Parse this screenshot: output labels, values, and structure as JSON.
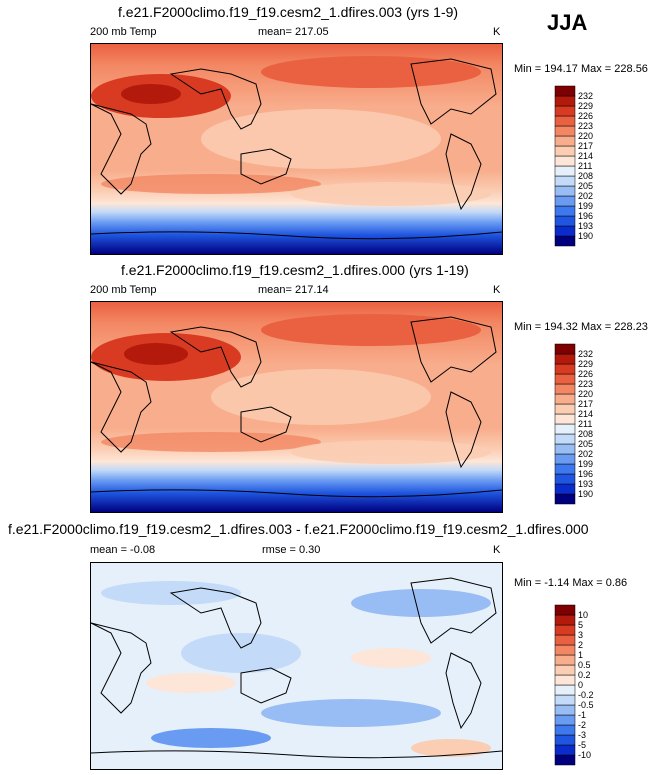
{
  "season": "JJA",
  "panels": [
    {
      "title": "f.e21.F2000climo.f19_f19.cesm2_1.dfires.003 (yrs 1-9)",
      "left": "200 mb Temp",
      "center": "mean= 217.05",
      "right": "K",
      "minmax": "Min = 194.17 Max = 228.56",
      "colorbar": [
        "190",
        "193",
        "196",
        "199",
        "202",
        "205",
        "208",
        "211",
        "214",
        "217",
        "220",
        "223",
        "226",
        "229",
        "232"
      ]
    },
    {
      "title": "f.e21.F2000climo.f19_f19.cesm2_1.dfires.000 (yrs 1-19)",
      "left": "200 mb Temp",
      "center": "mean= 217.14",
      "right": "K",
      "minmax": "Min = 194.32 Max = 228.23",
      "colorbar": [
        "190",
        "193",
        "196",
        "199",
        "202",
        "205",
        "208",
        "211",
        "214",
        "217",
        "220",
        "223",
        "226",
        "229",
        "232"
      ]
    },
    {
      "title": "f.e21.F2000climo.f19_f19.cesm2_1.dfires.003 - f.e21.F2000climo.f19_f19.cesm2_1.dfires.000",
      "left": "mean =  -0.08",
      "center": "rmse =  0.30",
      "right": "K",
      "minmax": "Min =  -1.14 Max =   0.86",
      "colorbar": [
        "-10",
        "-5",
        "-3",
        "-2",
        "-1",
        "-0.5",
        "-0.2",
        "0",
        "0.2",
        "0.5",
        "1",
        "2",
        "3",
        "5",
        "10"
      ]
    }
  ],
  "chart_data": [
    {
      "type": "heatmap",
      "title": "f.e21.F2000climo.f19_f19.cesm2_1.dfires.003 (yrs 1-9)",
      "variable": "200 mb Temp",
      "units": "K",
      "mean": 217.05,
      "min": 194.17,
      "max": 228.56,
      "levels": [
        190,
        193,
        196,
        199,
        202,
        205,
        208,
        211,
        214,
        217,
        220,
        223,
        226,
        229,
        232
      ],
      "colors": [
        "#00007f",
        "#0a2ccc",
        "#1f55e0",
        "#3e78ee",
        "#6a9bf2",
        "#98bdf5",
        "#c3daf8",
        "#e6f0fb",
        "#fde6d7",
        "#fbcdb3",
        "#f8ad8c",
        "#f38763",
        "#ea6141",
        "#d83b22",
        "#b41a0c",
        "#7f0000"
      ]
    },
    {
      "type": "heatmap",
      "title": "f.e21.F2000climo.f19_f19.cesm2_1.dfires.000 (yrs 1-19)",
      "variable": "200 mb Temp",
      "units": "K",
      "mean": 217.14,
      "min": 194.32,
      "max": 228.23,
      "levels": [
        190,
        193,
        196,
        199,
        202,
        205,
        208,
        211,
        214,
        217,
        220,
        223,
        226,
        229,
        232
      ],
      "colors": [
        "#00007f",
        "#0a2ccc",
        "#1f55e0",
        "#3e78ee",
        "#6a9bf2",
        "#98bdf5",
        "#c3daf8",
        "#e6f0fb",
        "#fde6d7",
        "#fbcdb3",
        "#f8ad8c",
        "#f38763",
        "#ea6141",
        "#d83b22",
        "#b41a0c",
        "#7f0000"
      ]
    },
    {
      "type": "heatmap",
      "title": "f.e21.F2000climo.f19_f19.cesm2_1.dfires.003 - f.e21.F2000climo.f19_f19.cesm2_1.dfires.000",
      "units": "K",
      "mean": -0.08,
      "rmse": 0.3,
      "min": -1.14,
      "max": 0.86,
      "levels": [
        -10,
        -5,
        -3,
        -2,
        -1,
        -0.5,
        -0.2,
        0,
        0.2,
        0.5,
        1,
        2,
        3,
        5,
        10
      ],
      "colors": [
        "#00007f",
        "#0a2ccc",
        "#1f55e0",
        "#3e78ee",
        "#6a9bf2",
        "#98bdf5",
        "#c3daf8",
        "#e6f0fb",
        "#fde6d7",
        "#fbcdb3",
        "#f8ad8c",
        "#f38763",
        "#ea6141",
        "#d83b22",
        "#b41a0c",
        "#7f0000"
      ]
    }
  ]
}
